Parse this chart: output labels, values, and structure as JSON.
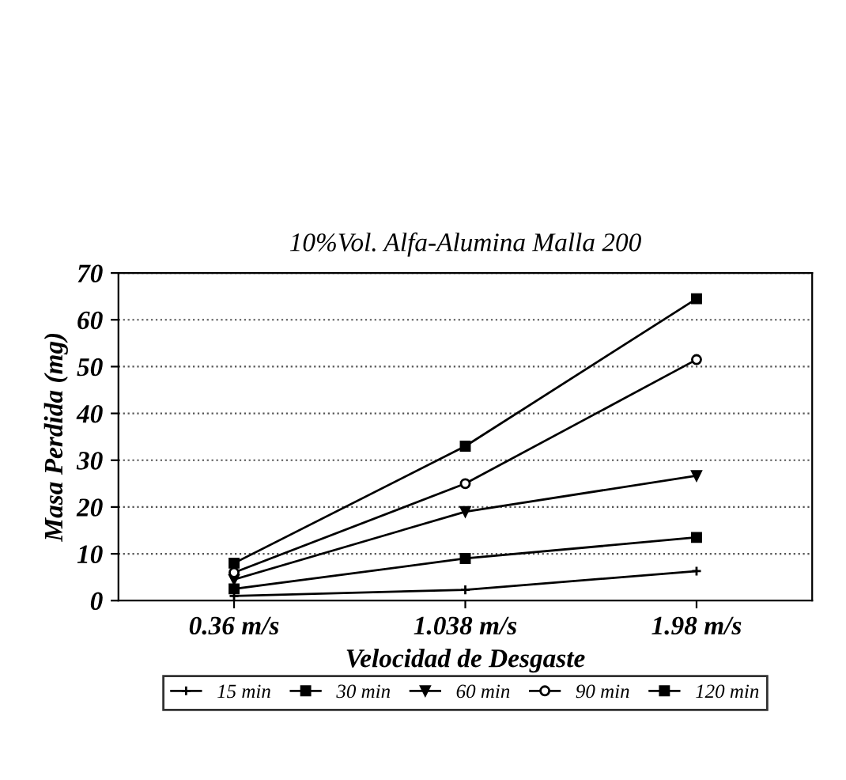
{
  "chart_data": {
    "type": "line",
    "title": "10%Vol. Alfa-Alumina Malla 200",
    "xlabel": "Velocidad de Desgaste",
    "ylabel": "Masa Perdida (mg)",
    "categories": [
      "0.36 m/s",
      "1.038 m/s",
      "1.98 m/s"
    ],
    "series": [
      {
        "name": "15 min",
        "color": "#000000",
        "marker": "cross",
        "values": [
          1,
          2.3,
          6.3
        ]
      },
      {
        "name": "30 min",
        "color": "#000000",
        "marker": "square",
        "values": [
          2.5,
          9,
          13.5
        ]
      },
      {
        "name": "60 min",
        "color": "#000000",
        "marker": "triangle",
        "values": [
          4.5,
          19,
          26.7
        ]
      },
      {
        "name": "90 min",
        "color": "#000000",
        "marker": "circle",
        "values": [
          6,
          25,
          51.5
        ]
      },
      {
        "name": "120 min",
        "color": "#000000",
        "marker": "square",
        "values": [
          8,
          33,
          64.5
        ]
      }
    ],
    "ylim": [
      0,
      70
    ],
    "yticks": [
      0,
      10,
      20,
      30,
      40,
      50,
      60,
      70
    ],
    "grid": "y",
    "legend": "bottom",
    "line_style": "solid"
  }
}
